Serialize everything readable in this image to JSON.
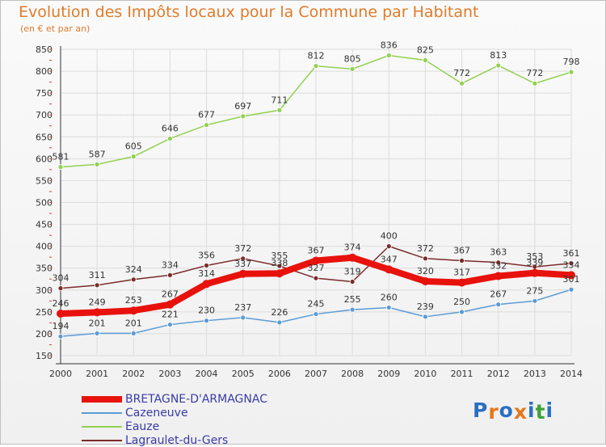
{
  "title": "Evolution des Impôts locaux pour la Commune par Habitant",
  "subtitle": "(en € et par an)",
  "logo": {
    "text": "Proxiti",
    "letter_colors": [
      "#2a6fc0",
      "#e8761a",
      "#2a6fc0",
      "#e8761a",
      "#2a6fc0",
      "#3ca33c",
      "#2a6fc0"
    ]
  },
  "chart_data": {
    "type": "line",
    "x": [
      "2000",
      "2001",
      "2002",
      "2003",
      "2004",
      "2005",
      "2006",
      "2007",
      "2008",
      "2009",
      "2010",
      "2011",
      "2012",
      "2013",
      "2014"
    ],
    "ylim": [
      150,
      850
    ],
    "yticks": [
      150,
      200,
      250,
      300,
      350,
      400,
      450,
      500,
      550,
      600,
      650,
      700,
      750,
      800,
      850
    ],
    "grid": true,
    "legend_position": "bottom-left",
    "series": [
      {
        "name": "BRETAGNE-D'ARMAGNAC",
        "color": "#e8120c",
        "emphasis": "thick",
        "values": [
          246,
          249,
          253,
          267,
          314,
          337,
          338,
          367,
          374,
          347,
          320,
          317,
          332,
          339,
          334
        ]
      },
      {
        "name": "Cazeneuve",
        "color": "#5b9bd5",
        "values": [
          194,
          201,
          201,
          221,
          230,
          237,
          226,
          245,
          255,
          260,
          239,
          250,
          267,
          275,
          301
        ]
      },
      {
        "name": "Eauze",
        "color": "#92d050",
        "values": [
          581,
          587,
          605,
          646,
          677,
          697,
          711,
          812,
          805,
          836,
          825,
          772,
          813,
          772,
          798
        ]
      },
      {
        "name": "Lagraulet-du-Gers",
        "color": "#7b2a2a",
        "values": [
          304,
          311,
          324,
          334,
          356,
          372,
          355,
          327,
          319,
          400,
          372,
          367,
          363,
          353,
          361
        ]
      }
    ]
  }
}
